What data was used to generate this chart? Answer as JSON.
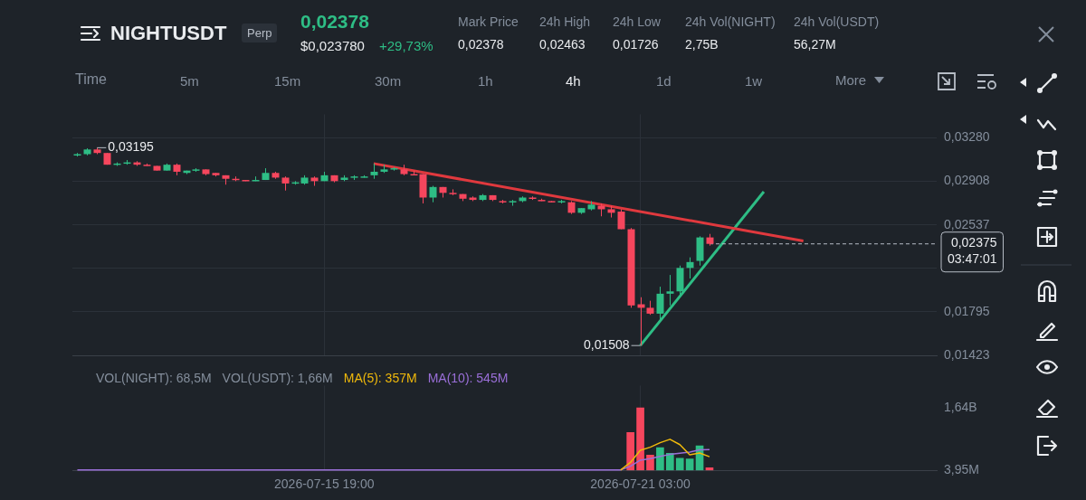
{
  "chart_data": [
    {
      "type": "other",
      "title": "NIGHTUSDT",
      "subtitle": "Perp",
      "annotations": [
        "0,02378",
        "$0,023780",
        "+29,73%",
        "Mark Price",
        "0,02378",
        "24h High",
        "0,02463",
        "24h Low",
        "0,01726",
        "24h Vol(NIGHT)",
        "2,75B",
        "24h Vol(USDT)",
        "56,27M",
        "Time",
        "5m",
        "15m",
        "30m",
        "1h",
        "4h",
        "1d",
        "1w",
        "More"
      ]
    },
    {
      "type": "candlestick",
      "x": [
        "2026-07-11T15:00",
        "2026-07-11T19:00",
        "2026-07-11T23:00",
        "2026-07-12T03:00",
        "2026-07-12T07:00",
        "2026-07-12T11:00",
        "2026-07-12T15:00",
        "2026-07-12T19:00",
        "2026-07-12T23:00",
        "2026-07-13T03:00",
        "2026-07-13T07:00",
        "2026-07-13T11:00",
        "2026-07-13T15:00",
        "2026-07-13T19:00",
        "2026-07-13T23:00",
        "2026-07-14T03:00",
        "2026-07-14T07:00",
        "2026-07-14T11:00",
        "2026-07-14T15:00",
        "2026-07-14T19:00",
        "2026-07-14T23:00",
        "2026-07-15T03:00",
        "2026-07-15T07:00",
        "2026-07-15T11:00",
        "2026-07-15T15:00",
        "2026-07-15T19:00",
        "2026-07-15T23:00",
        "2026-07-16T03:00",
        "2026-07-16T07:00",
        "2026-07-16T11:00",
        "2026-07-16T15:00",
        "2026-07-16T19:00",
        "2026-07-16T23:00",
        "2026-07-17T03:00",
        "2026-07-17T07:00",
        "2026-07-17T11:00",
        "2026-07-17T15:00",
        "2026-07-17T19:00",
        "2026-07-17T23:00",
        "2026-07-18T03:00",
        "2026-07-18T07:00",
        "2026-07-18T11:00",
        "2026-07-18T15:00",
        "2026-07-18T19:00",
        "2026-07-18T23:00",
        "2026-07-19T03:00",
        "2026-07-19T07:00",
        "2026-07-19T11:00",
        "2026-07-19T15:00",
        "2026-07-19T19:00",
        "2026-07-19T23:00",
        "2026-07-20T03:00",
        "2026-07-20T07:00",
        "2026-07-20T11:00",
        "2026-07-20T15:00",
        "2026-07-20T19:00",
        "2026-07-20T23:00",
        "2026-07-21T03:00",
        "2026-07-21T07:00",
        "2026-07-21T11:00",
        "2026-07-21T15:00",
        "2026-07-21T19:00",
        "2026-07-21T23:00",
        "2026-07-22T03:00",
        "2026-07-22T07:00"
      ],
      "ohlc": [
        [
          0.0313,
          0.0315,
          0.0312,
          0.0314
        ],
        [
          0.0314,
          0.0319,
          0.0313,
          0.0318
        ],
        [
          0.0318,
          0.03195,
          0.0314,
          0.0315
        ],
        [
          0.0315,
          0.0315,
          0.0305,
          0.0305
        ],
        [
          0.0305,
          0.0307,
          0.0304,
          0.0306
        ],
        [
          0.0306,
          0.0309,
          0.0305,
          0.0307
        ],
        [
          0.0307,
          0.0308,
          0.0304,
          0.0305
        ],
        [
          0.0305,
          0.0306,
          0.0304,
          0.0304
        ],
        [
          0.0304,
          0.0304,
          0.03,
          0.03
        ],
        [
          0.03,
          0.0306,
          0.03,
          0.0305
        ],
        [
          0.0305,
          0.0306,
          0.0296,
          0.0299
        ],
        [
          0.0298,
          0.03,
          0.0297,
          0.03
        ],
        [
          0.03,
          0.0302,
          0.0299,
          0.0301
        ],
        [
          0.0301,
          0.0301,
          0.0296,
          0.0297
        ],
        [
          0.0298,
          0.0298,
          0.0295,
          0.0296
        ],
        [
          0.0296,
          0.0296,
          0.0288,
          0.0293
        ],
        [
          0.0293,
          0.0295,
          0.0291,
          0.0292
        ],
        [
          0.0292,
          0.0292,
          0.0291,
          0.0291
        ],
        [
          0.0291,
          0.0295,
          0.0291,
          0.0292
        ],
        [
          0.0292,
          0.0302,
          0.0292,
          0.0298
        ],
        [
          0.0298,
          0.0299,
          0.0293,
          0.0294
        ],
        [
          0.0294,
          0.0295,
          0.0283,
          0.0289
        ],
        [
          0.0289,
          0.0291,
          0.0288,
          0.029
        ],
        [
          0.0289,
          0.0296,
          0.0288,
          0.0294
        ],
        [
          0.0294,
          0.0295,
          0.0287,
          0.0291
        ],
        [
          0.0291,
          0.0299,
          0.0291,
          0.0296
        ],
        [
          0.0296,
          0.0296,
          0.029,
          0.0291
        ],
        [
          0.0292,
          0.0296,
          0.0291,
          0.0294
        ],
        [
          0.0294,
          0.0296,
          0.0292,
          0.0295
        ],
        [
          0.0294,
          0.0296,
          0.0294,
          0.0295
        ],
        [
          0.0296,
          0.0306,
          0.0293,
          0.0299
        ],
        [
          0.0299,
          0.0305,
          0.0298,
          0.0301
        ],
        [
          0.0301,
          0.0303,
          0.03,
          0.0302
        ],
        [
          0.0301,
          0.0305,
          0.0296,
          0.0297
        ],
        [
          0.0297,
          0.03,
          0.0296,
          0.0296
        ],
        [
          0.0297,
          0.0297,
          0.0272,
          0.0277
        ],
        [
          0.0277,
          0.0287,
          0.0273,
          0.0286
        ],
        [
          0.0286,
          0.0286,
          0.0277,
          0.0281
        ],
        [
          0.0281,
          0.0284,
          0.0279,
          0.028
        ],
        [
          0.028,
          0.028,
          0.0274,
          0.0276
        ],
        [
          0.0277,
          0.0278,
          0.0274,
          0.0275
        ],
        [
          0.0275,
          0.028,
          0.0274,
          0.0279
        ],
        [
          0.0279,
          0.0279,
          0.0274,
          0.0275
        ],
        [
          0.0274,
          0.0275,
          0.0272,
          0.0273
        ],
        [
          0.0273,
          0.0275,
          0.027,
          0.0274
        ],
        [
          0.0274,
          0.0278,
          0.0273,
          0.0277
        ],
        [
          0.0277,
          0.0278,
          0.0275,
          0.0276
        ],
        [
          0.0275,
          0.0276,
          0.0274,
          0.0274
        ],
        [
          0.0274,
          0.0274,
          0.0273,
          0.0273
        ],
        [
          0.0273,
          0.0275,
          0.0272,
          0.0274
        ],
        [
          0.0273,
          0.0274,
          0.0263,
          0.0264
        ],
        [
          0.0264,
          0.0268,
          0.0263,
          0.0268
        ],
        [
          0.0267,
          0.0274,
          0.0266,
          0.0271
        ],
        [
          0.027,
          0.0272,
          0.0261,
          0.0267
        ],
        [
          0.0267,
          0.027,
          0.026,
          0.0264
        ],
        [
          0.0265,
          0.0267,
          0.025,
          0.025
        ],
        [
          0.025,
          0.0251,
          0.0183,
          0.0185
        ],
        [
          0.0186,
          0.0192,
          0.01508,
          0.0183
        ],
        [
          0.0183,
          0.0189,
          0.0177,
          0.0178
        ],
        [
          0.0178,
          0.0201,
          0.0173,
          0.0195
        ],
        [
          0.0195,
          0.0211,
          0.0185,
          0.0197
        ],
        [
          0.0197,
          0.0219,
          0.0193,
          0.0217
        ],
        [
          0.0217,
          0.0226,
          0.0208,
          0.0222
        ],
        [
          0.0223,
          0.0244,
          0.0219,
          0.0243
        ],
        [
          0.0243,
          0.0246,
          0.0236,
          0.02375
        ]
      ],
      "colors": [
        "#2ebd85",
        "#2ebd85",
        "#f6465d",
        "#f6465d",
        "#2ebd85",
        "#2ebd85",
        "#f6465d",
        "#f6465d",
        "#f6465d",
        "#2ebd85",
        "#f6465d",
        "#2ebd85",
        "#2ebd85",
        "#f6465d",
        "#f6465d",
        "#f6465d",
        "#f6465d",
        "#f6465d",
        "#2ebd85",
        "#2ebd85",
        "#f6465d",
        "#f6465d",
        "#2ebd85",
        "#2ebd85",
        "#f6465d",
        "#2ebd85",
        "#f6465d",
        "#2ebd85",
        "#2ebd85",
        "#2ebd85",
        "#2ebd85",
        "#2ebd85",
        "#2ebd85",
        "#f6465d",
        "#f6465d",
        "#f6465d",
        "#2ebd85",
        "#f6465d",
        "#f6465d",
        "#f6465d",
        "#f6465d",
        "#2ebd85",
        "#f6465d",
        "#f6465d",
        "#2ebd85",
        "#2ebd85",
        "#f6465d",
        "#f6465d",
        "#f6465d",
        "#2ebd85",
        "#f6465d",
        "#2ebd85",
        "#2ebd85",
        "#f6465d",
        "#f6465d",
        "#f6465d",
        "#f6465d",
        "#f6465d",
        "#f6465d",
        "#2ebd85",
        "#2ebd85",
        "#2ebd85",
        "#2ebd85",
        "#2ebd85",
        "#f6465d"
      ],
      "series": [
        {
          "type": "line",
          "x": [
            "2026-07-16T15:00",
            "2026-07-23T21:00"
          ],
          "values": [
            0.0306,
            0.024
          ],
          "color": "#e0393e"
        },
        {
          "type": "line",
          "x": [
            "2026-07-21T03:00",
            "2026-07-23T05:00"
          ],
          "values": [
            0.01508,
            0.0282
          ],
          "color": "#2ebd85"
        }
      ],
      "annotations": [
        {
          "text": "0,03195",
          "x": "2026-07-11T23:00",
          "y": 0.03195
        },
        {
          "text": "0,01508",
          "x": "2026-07-21T03:00",
          "y": 0.01508
        }
      ],
      "ref_lines": [
        {
          "axis": "y",
          "value": 0.02375,
          "label": "0,02375\n03:47:01",
          "color": "#b7bdc6",
          "line_style": "dashed"
        }
      ],
      "xlim": [
        "2026-07-11T13:00",
        "2026-07-26T03:00"
      ],
      "xticks": [
        {
          "value": "2026-07-15T19:00",
          "label": null
        },
        {
          "value": "2026-07-21T03:00",
          "label": null
        }
      ],
      "ylim": [
        0.0142,
        0.0348
      ],
      "yticks": [
        {
          "value": 0.0328,
          "label": "0,03280"
        },
        {
          "value": 0.02908,
          "label": "0,02908"
        },
        {
          "value": 0.02537,
          "label": "0,02537"
        },
        {
          "value": 0.02166,
          "label": null
        },
        {
          "value": 0.01795,
          "label": "0,01795"
        },
        {
          "value": 0.01423,
          "label": "0,01423"
        }
      ],
      "grid": true,
      "tick_labels": "y"
    },
    {
      "type": "bar",
      "x": [
        "2026-07-11T15:00",
        "2026-07-11T19:00",
        "2026-07-11T23:00",
        "2026-07-12T03:00",
        "2026-07-12T07:00",
        "2026-07-12T11:00",
        "2026-07-12T15:00",
        "2026-07-12T19:00",
        "2026-07-12T23:00",
        "2026-07-13T03:00",
        "2026-07-13T07:00",
        "2026-07-13T11:00",
        "2026-07-13T15:00",
        "2026-07-13T19:00",
        "2026-07-13T23:00",
        "2026-07-14T03:00",
        "2026-07-14T07:00",
        "2026-07-14T11:00",
        "2026-07-14T15:00",
        "2026-07-14T19:00",
        "2026-07-14T23:00",
        "2026-07-15T03:00",
        "2026-07-15T07:00",
        "2026-07-15T11:00",
        "2026-07-15T15:00",
        "2026-07-15T19:00",
        "2026-07-15T23:00",
        "2026-07-16T03:00",
        "2026-07-16T07:00",
        "2026-07-16T11:00",
        "2026-07-16T15:00",
        "2026-07-16T19:00",
        "2026-07-16T23:00",
        "2026-07-17T03:00",
        "2026-07-17T07:00",
        "2026-07-17T11:00",
        "2026-07-17T15:00",
        "2026-07-17T19:00",
        "2026-07-17T23:00",
        "2026-07-18T03:00",
        "2026-07-18T07:00",
        "2026-07-18T11:00",
        "2026-07-18T15:00",
        "2026-07-18T19:00",
        "2026-07-18T23:00",
        "2026-07-19T03:00",
        "2026-07-19T07:00",
        "2026-07-19T11:00",
        "2026-07-19T15:00",
        "2026-07-19T19:00",
        "2026-07-19T23:00",
        "2026-07-20T03:00",
        "2026-07-20T07:00",
        "2026-07-20T11:00",
        "2026-07-20T15:00",
        "2026-07-20T19:00",
        "2026-07-20T23:00",
        "2026-07-21T03:00",
        "2026-07-21T07:00",
        "2026-07-21T11:00",
        "2026-07-21T15:00",
        "2026-07-21T19:00",
        "2026-07-21T23:00",
        "2026-07-22T03:00",
        "2026-07-22T07:00"
      ],
      "series": [
        {
          "values": [
            null,
            null,
            null,
            null,
            null,
            null,
            null,
            null,
            null,
            null,
            null,
            null,
            null,
            null,
            null,
            null,
            null,
            null,
            null,
            null,
            null,
            null,
            null,
            null,
            null,
            null,
            null,
            null,
            null,
            null,
            null,
            null,
            null,
            null,
            null,
            null,
            null,
            null,
            null,
            null,
            null,
            null,
            null,
            null,
            null,
            null,
            null,
            null,
            null,
            null,
            null,
            null,
            null,
            null,
            null,
            null,
            1000000000,
            1650000000,
            400000000,
            600000000,
            450000000,
            320000000,
            300000000,
            650000000,
            70000000
          ],
          "colors": [
            "#2ebd85",
            "#2ebd85",
            "#f6465d",
            "#f6465d",
            "#2ebd85",
            "#2ebd85",
            "#f6465d",
            "#f6465d",
            "#f6465d",
            "#2ebd85",
            "#f6465d",
            "#2ebd85",
            "#2ebd85",
            "#f6465d",
            "#f6465d",
            "#f6465d",
            "#f6465d",
            "#f6465d",
            "#2ebd85",
            "#2ebd85",
            "#f6465d",
            "#f6465d",
            "#2ebd85",
            "#2ebd85",
            "#f6465d",
            "#2ebd85",
            "#f6465d",
            "#2ebd85",
            "#2ebd85",
            "#2ebd85",
            "#2ebd85",
            "#2ebd85",
            "#2ebd85",
            "#f6465d",
            "#f6465d",
            "#f6465d",
            "#2ebd85",
            "#f6465d",
            "#f6465d",
            "#f6465d",
            "#f6465d",
            "#2ebd85",
            "#f6465d",
            "#f6465d",
            "#2ebd85",
            "#2ebd85",
            "#f6465d",
            "#f6465d",
            "#f6465d",
            "#2ebd85",
            "#f6465d",
            "#2ebd85",
            "#2ebd85",
            "#f6465d",
            "#f6465d",
            "#f6465d",
            "#f6465d",
            "#f6465d",
            "#f6465d",
            "#2ebd85",
            "#2ebd85",
            "#2ebd85",
            "#2ebd85",
            "#2ebd85",
            "#f6465d"
          ]
        },
        {
          "type": "line",
          "name": "MA(5): 357M",
          "color": "#f0b90b",
          "values": [
            null,
            null,
            null,
            null,
            null,
            null,
            null,
            null,
            null,
            null,
            null,
            null,
            null,
            null,
            null,
            null,
            null,
            null,
            null,
            null,
            null,
            null,
            null,
            null,
            null,
            null,
            null,
            null,
            null,
            null,
            null,
            null,
            null,
            null,
            null,
            null,
            null,
            null,
            null,
            null,
            null,
            null,
            null,
            null,
            null,
            null,
            null,
            null,
            null,
            null,
            null,
            null,
            null,
            null,
            null,
            10000000,
            210000000,
            530000000,
            610000000,
            730000000,
            820000000,
            680000000,
            410000000,
            460000000,
            360000000
          ]
        },
        {
          "type": "line",
          "name": "MA(10): 545M",
          "color": "#9a6fd8",
          "values": [
            10000000,
            10000000,
            10000000,
            10000000,
            10000000,
            10000000,
            10000000,
            10000000,
            10000000,
            10000000,
            10000000,
            10000000,
            10000000,
            10000000,
            10000000,
            10000000,
            10000000,
            10000000,
            10000000,
            10000000,
            10000000,
            10000000,
            10000000,
            10000000,
            10000000,
            10000000,
            10000000,
            10000000,
            10000000,
            10000000,
            10000000,
            10000000,
            10000000,
            10000000,
            10000000,
            10000000,
            10000000,
            10000000,
            10000000,
            10000000,
            10000000,
            10000000,
            10000000,
            10000000,
            10000000,
            10000000,
            10000000,
            10000000,
            10000000,
            10000000,
            10000000,
            10000000,
            10000000,
            10000000,
            10000000,
            10000000,
            110000000,
            270000000,
            310000000,
            370000000,
            420000000,
            450000000,
            480000000,
            540000000,
            550000000
          ]
        }
      ],
      "annotations": [
        "VOL(NIGHT): 68,5M",
        "VOL(USDT): 1,66M"
      ],
      "legend": "top left",
      "xlim": [
        "2026-07-11T13:00",
        "2026-07-26T03:00"
      ],
      "xticks": [
        {
          "value": "2026-07-15T19:00",
          "label": "2026-07-15 19:00"
        },
        {
          "value": "2026-07-21T03:00",
          "label": "2026-07-21 03:00"
        }
      ],
      "ylim": [
        0,
        2240000000
      ],
      "yticks": [
        {
          "value": 3950000,
          "label": "3,95M"
        },
        {
          "value": 1640000000,
          "label": "1,64B"
        }
      ],
      "grid": "x"
    }
  ]
}
